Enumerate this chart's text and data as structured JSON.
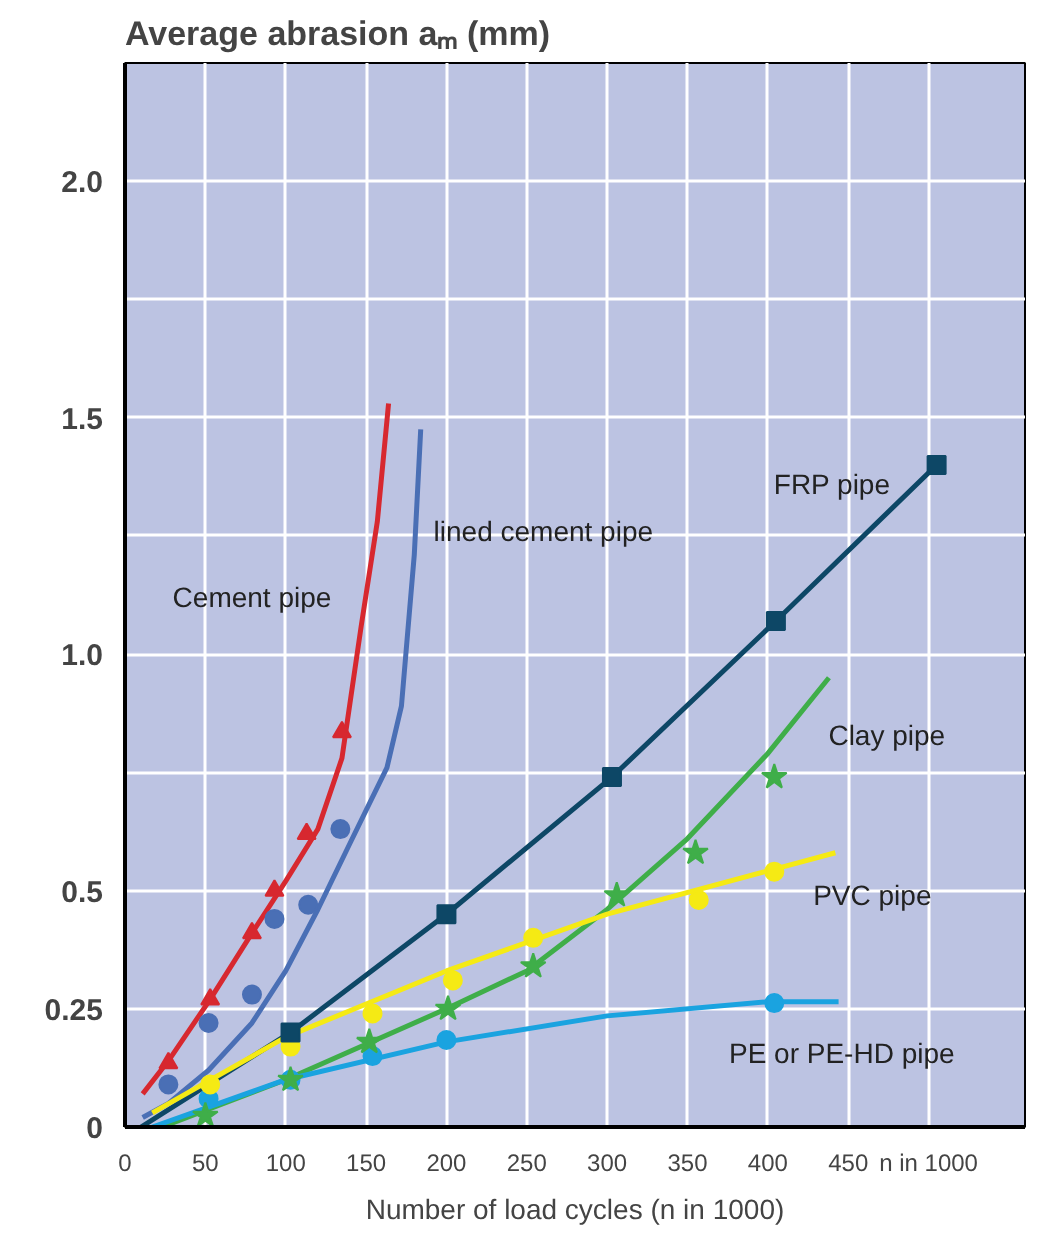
{
  "chart_data": {
    "type": "line",
    "title": "Average abrasion aₘ (mm)",
    "xlabel": "Number of load cycles (n in 1000)",
    "xlim": [
      0,
      560
    ],
    "ylim": [
      0,
      2.25
    ],
    "xticks": [
      0,
      50,
      100,
      150,
      200,
      250,
      300,
      350,
      400,
      450,
      {
        "value": 500,
        "label": "n in 1000"
      }
    ],
    "yticks": [
      0,
      0.25,
      0.5,
      {
        "value": 0.75,
        "label": null
      },
      {
        "value": 1,
        "label": "1.0"
      },
      {
        "value": 1.25,
        "label": null
      },
      1.5,
      {
        "value": 1.75,
        "label": null
      },
      {
        "value": 2,
        "label": "2.0"
      }
    ],
    "grid": true,
    "series": [
      {
        "color": "#d7282f",
        "x": [
          11,
          27,
          53,
          79,
          100,
          120,
          135,
          147,
          157,
          164
        ],
        "values": [
          0.07,
          0.14,
          0.27,
          0.41,
          0.52,
          0.63,
          0.78,
          1.06,
          1.28,
          1.53
        ]
      },
      {
        "type": "scatter",
        "marker": "triangle",
        "color": "#d7282f",
        "x": [
          27,
          53,
          79,
          93,
          113,
          135
        ],
        "values": [
          0.135,
          0.27,
          0.41,
          0.5,
          0.62,
          0.835
        ]
      },
      {
        "color": "#4a6fb5",
        "x": [
          11,
          27,
          52,
          79,
          100,
          120,
          140,
          163,
          172,
          180,
          184
        ],
        "values": [
          0.02,
          0.05,
          0.12,
          0.22,
          0.33,
          0.46,
          0.6,
          0.76,
          0.89,
          1.21,
          1.475
        ]
      },
      {
        "type": "scatter",
        "marker": "circle",
        "color": "#4a6fb5",
        "x": [
          27,
          52,
          79,
          93,
          114,
          134
        ],
        "values": [
          0.09,
          0.22,
          0.28,
          0.44,
          0.47,
          0.63
        ]
      },
      {
        "color": "#0d4766",
        "x": [
          10,
          103,
          200,
          303,
          405,
          505
        ],
        "values": [
          0,
          0.2,
          0.45,
          0.74,
          1.07,
          1.4
        ]
      },
      {
        "type": "scatter",
        "marker": "square",
        "color": "#0d4766",
        "x": [
          103,
          200,
          303,
          405,
          505
        ],
        "values": [
          0.2,
          0.45,
          0.74,
          1.07,
          1.4
        ]
      },
      {
        "color": "#3fae49",
        "x": [
          23,
          100,
          200,
          250,
          300,
          350,
          400,
          438
        ],
        "values": [
          0,
          0.1,
          0.25,
          0.33,
          0.46,
          0.61,
          0.79,
          0.95
        ]
      },
      {
        "type": "scatter",
        "marker": "star",
        "color": "#3fae49",
        "x": [
          50,
          103,
          152,
          201,
          254,
          306,
          355,
          404
        ],
        "values": [
          0.024,
          0.1,
          0.18,
          0.25,
          0.34,
          0.49,
          0.58,
          0.74
        ]
      },
      {
        "color": "#f5ea14",
        "x": [
          17,
          100,
          200,
          300,
          442
        ],
        "values": [
          0.03,
          0.19,
          0.33,
          0.45,
          0.58
        ]
      },
      {
        "type": "scatter",
        "marker": "circle",
        "color": "#f5ea14",
        "x": [
          53,
          103,
          154,
          204,
          254,
          357,
          404
        ],
        "values": [
          0.09,
          0.17,
          0.24,
          0.31,
          0.4,
          0.48,
          0.54
        ]
      },
      {
        "color": "#1aa3e0",
        "x": [
          17,
          100,
          200,
          300,
          400,
          444
        ],
        "values": [
          0,
          0.1,
          0.18,
          0.235,
          0.265,
          0.265
        ]
      },
      {
        "type": "scatter",
        "marker": "circle",
        "color": "#1aa3e0",
        "x": [
          52,
          103,
          154,
          200,
          404
        ],
        "values": [
          0.06,
          0.1,
          0.15,
          0.184,
          0.262
        ]
      }
    ],
    "annotations": [
      "Cement pipe",
      "lined cement pipe",
      "FRP pipe",
      "Clay pipe",
      "PVC pipe",
      "PE or PE-HD pipe"
    ]
  }
}
